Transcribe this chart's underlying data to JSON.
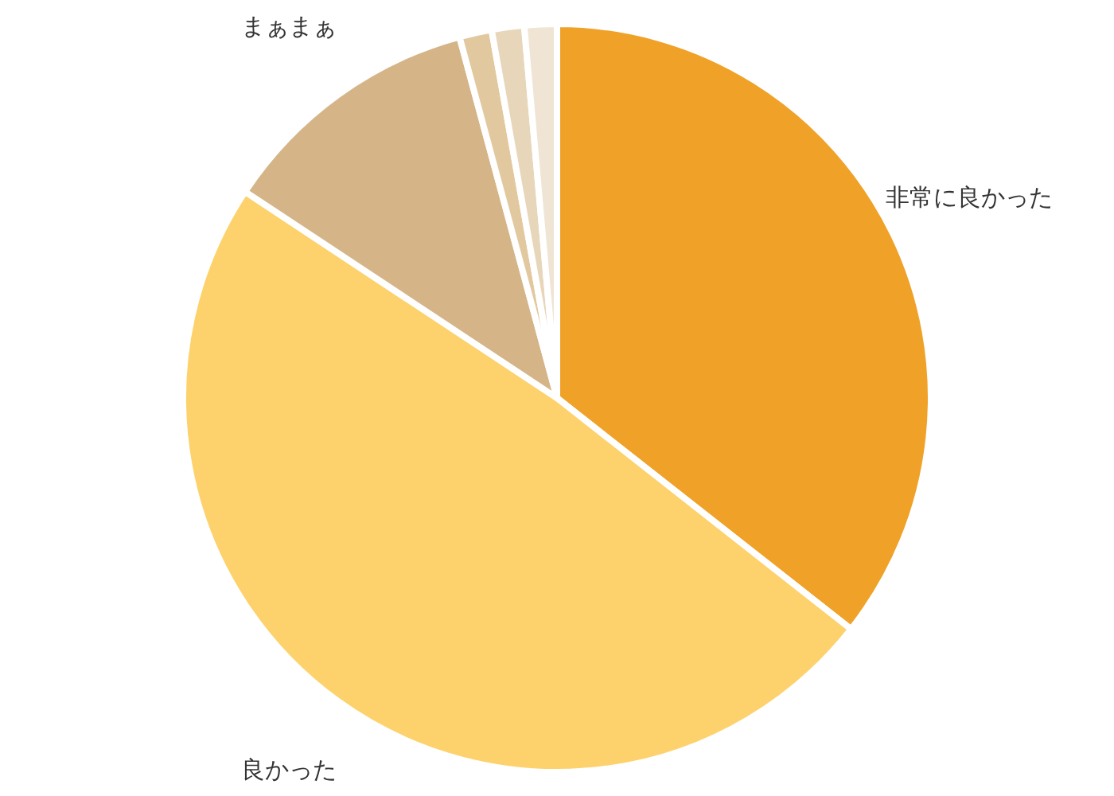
{
  "chart_data": {
    "type": "pie",
    "categories": [
      "非常に良かった",
      "良かった",
      "まぁまぁ",
      null,
      null,
      null
    ],
    "values": [
      35.6,
      48.7,
      11.5,
      1.4,
      1.4,
      1.4
    ],
    "colors": [
      "#f0a128",
      "#fdd26c",
      "#d5b588",
      "#e2c89f",
      "#e8d6ba",
      "#f0e5d5"
    ]
  }
}
